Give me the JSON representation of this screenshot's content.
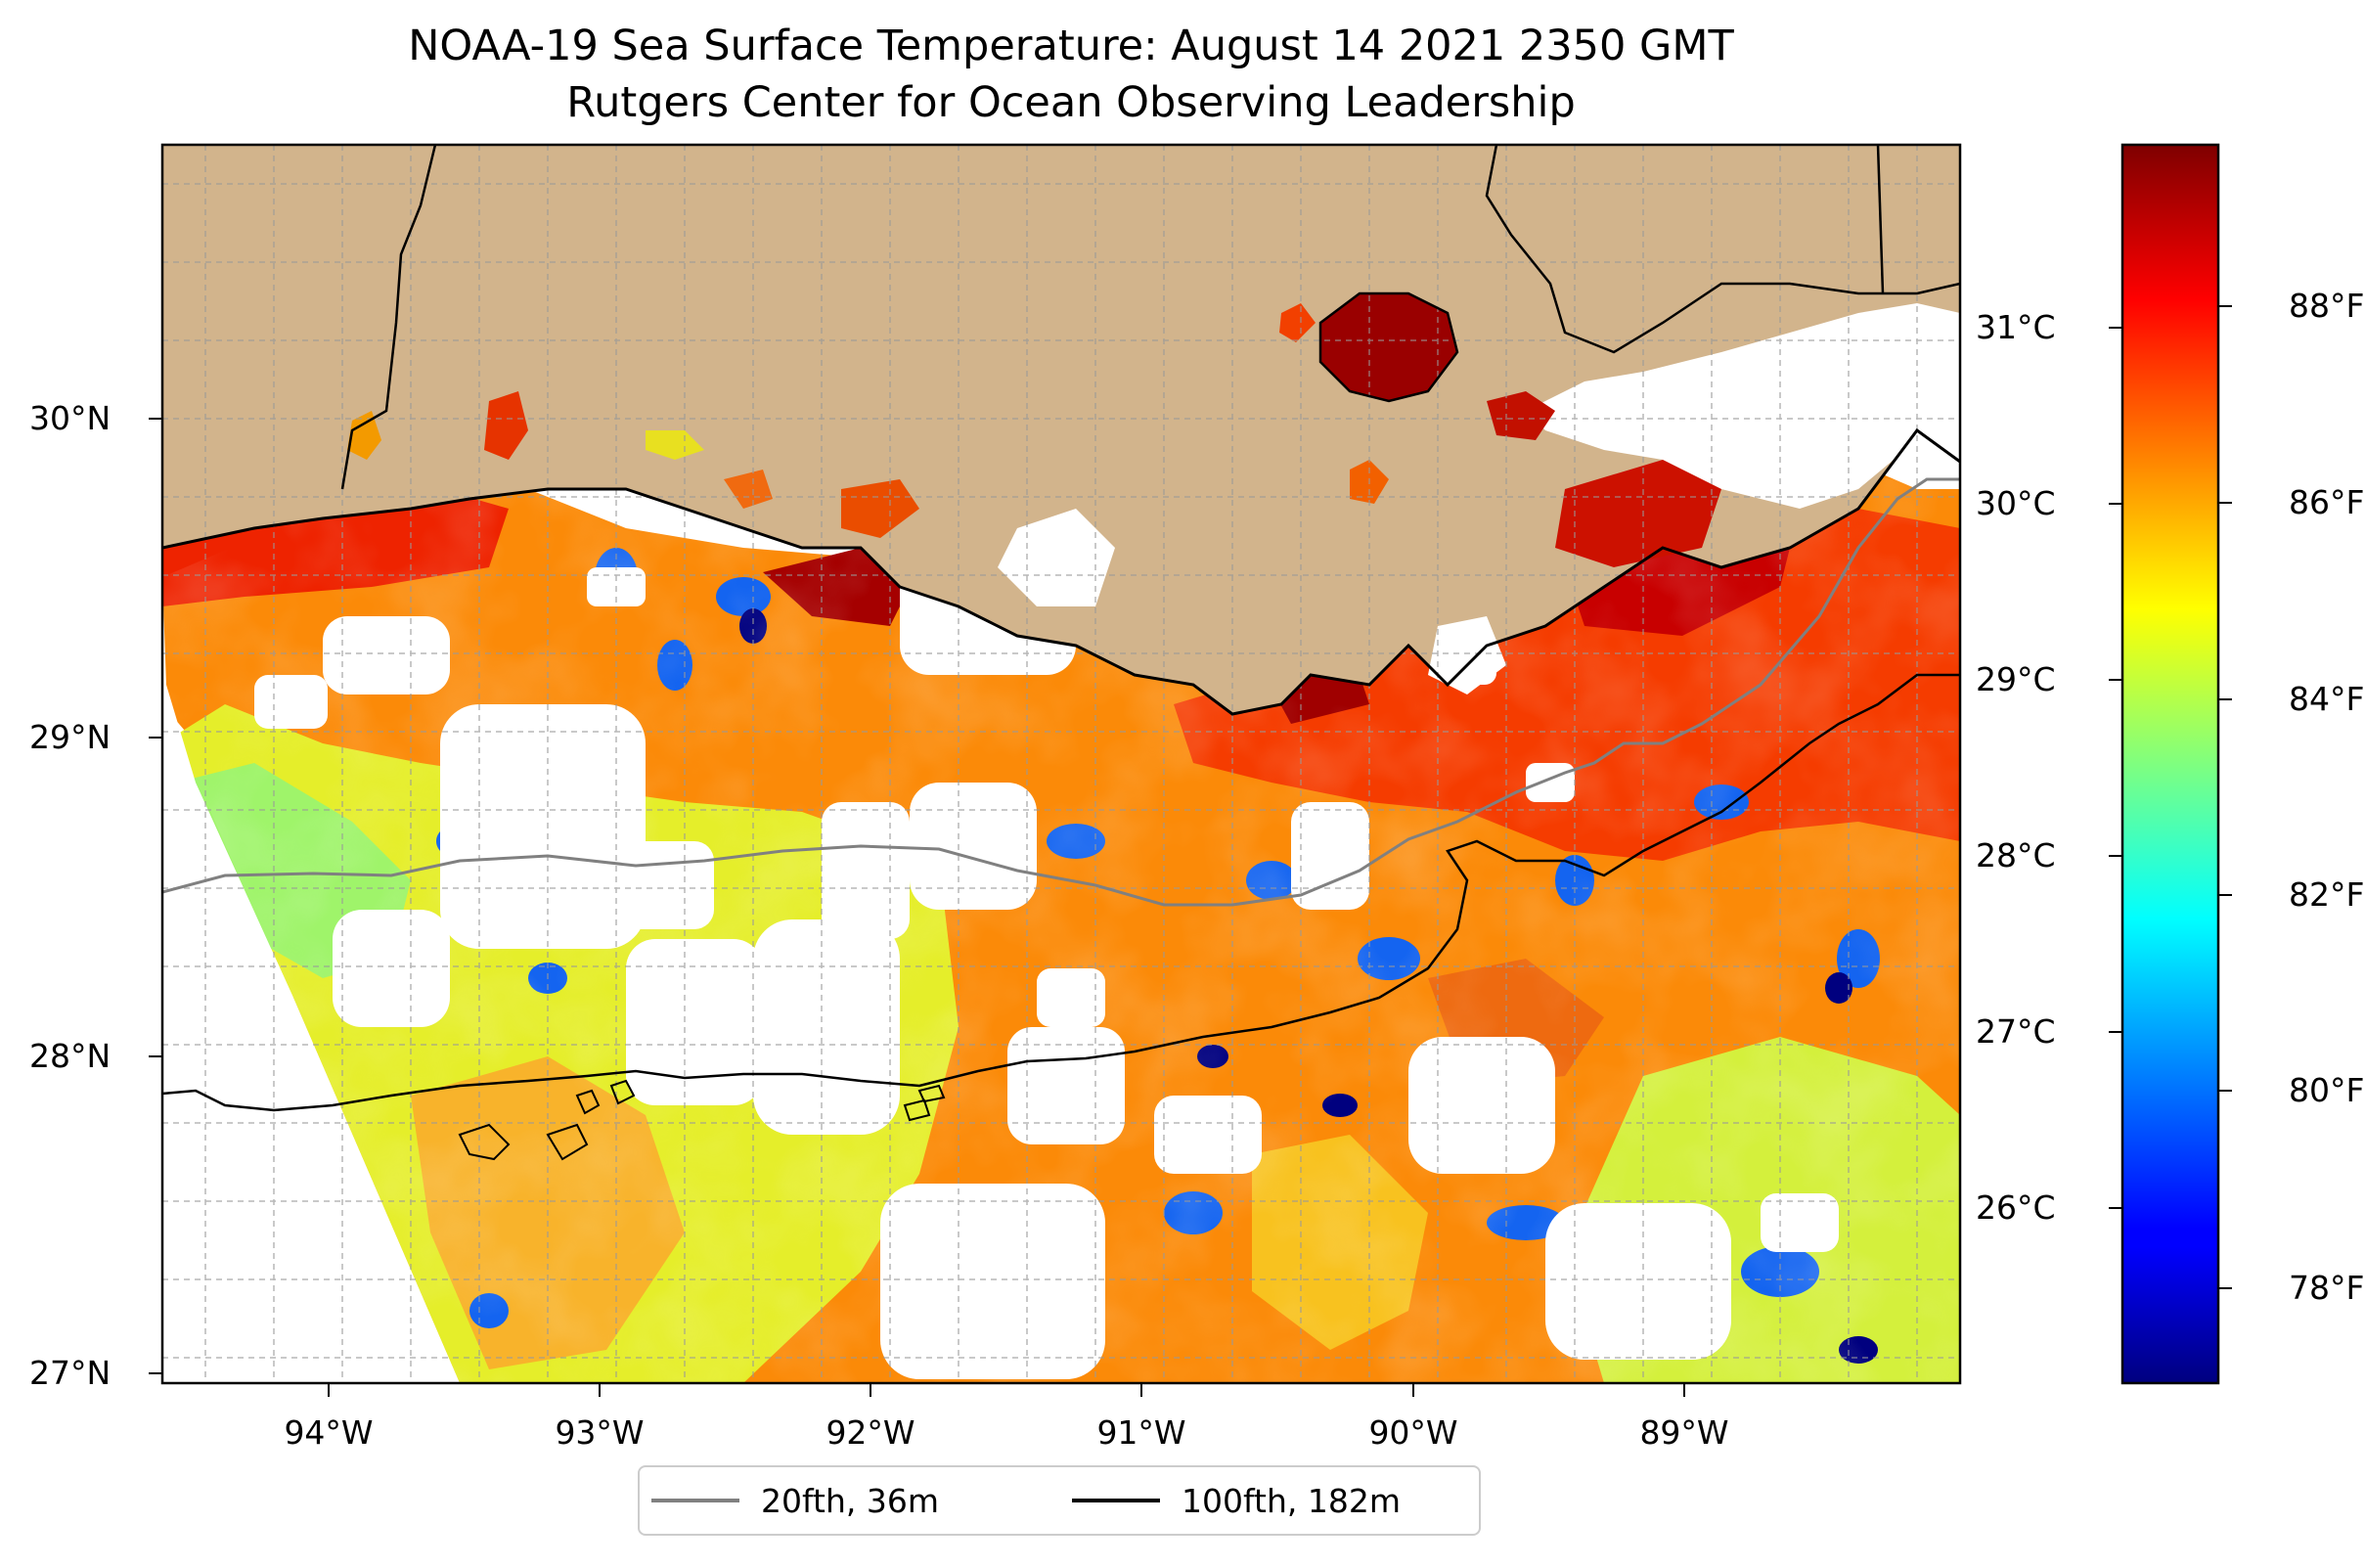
{
  "title": "NOAA-19 Sea Surface Temperature: August 14 2021 2350 GMT",
  "subtitle": "Rutgers Center for Ocean Observing Leadership",
  "map": {
    "extent": {
      "lon": [
        -94.55,
        -88.15
      ],
      "lat": [
        26.93,
        30.85
      ]
    },
    "land_color": "#d2b48c",
    "no_data_color": "#ffffff",
    "grid": true,
    "lat_ticks": [
      {
        "value": 30,
        "label": "30°N"
      },
      {
        "value": 29,
        "label": "29°N"
      },
      {
        "value": 28,
        "label": "28°N"
      },
      {
        "value": 27,
        "label": "27°N"
      }
    ],
    "lon_ticks": [
      {
        "value": -94,
        "label": "94°W"
      },
      {
        "value": -93,
        "label": "93°W"
      },
      {
        "value": -92,
        "label": "92°W"
      },
      {
        "value": -91,
        "label": "91°W"
      },
      {
        "value": -90,
        "label": "90°W"
      },
      {
        "value": -89,
        "label": "89°W"
      }
    ]
  },
  "colorbar": {
    "colormap": "jet",
    "range_f": [
      77.0,
      89.7
    ],
    "celsius_ticks": [
      {
        "value": 26,
        "label": "26°C"
      },
      {
        "value": 27,
        "label": "27°C"
      },
      {
        "value": 28,
        "label": "28°C"
      },
      {
        "value": 29,
        "label": "29°C"
      },
      {
        "value": 30,
        "label": "30°C"
      },
      {
        "value": 31,
        "label": "31°C"
      }
    ],
    "fahrenheit_ticks": [
      {
        "value": 78,
        "label": "78°F"
      },
      {
        "value": 80,
        "label": "80°F"
      },
      {
        "value": 82,
        "label": "82°F"
      },
      {
        "value": 84,
        "label": "84°F"
      },
      {
        "value": 86,
        "label": "86°F"
      },
      {
        "value": 88,
        "label": "88°F"
      }
    ]
  },
  "legend": {
    "position": "bottom-center",
    "items": [
      {
        "label": "20fth, 36m",
        "color": "#808080"
      },
      {
        "label": "100fth, 182m",
        "color": "#000000"
      }
    ]
  }
}
